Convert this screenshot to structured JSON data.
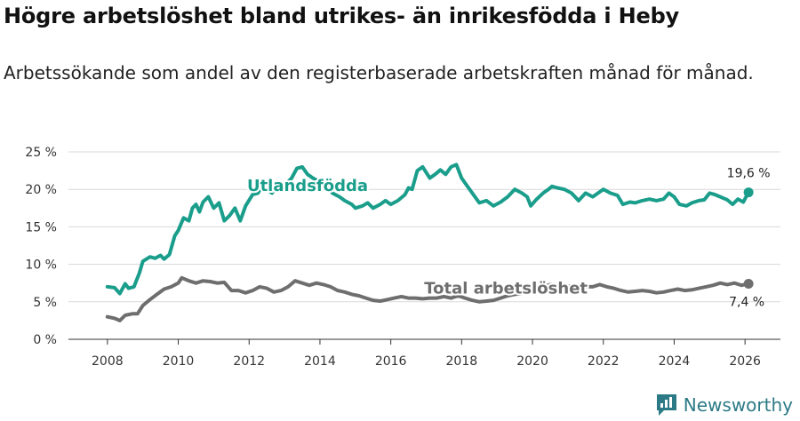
{
  "title": "Högre arbetslöshet bland utrikes- än inrikesfödda i Heby",
  "subtitle": "Arbetssökande som andel av den registerbaserade arbetskraften månad för månad.",
  "brand": "Newsworthy",
  "colors": {
    "foreign": "#1a9e8b",
    "total": "#6e6e6e"
  },
  "chart_data": {
    "type": "line",
    "title": "Högre arbetslöshet bland utrikes- än inrikesfödda i Heby",
    "xlabel": "",
    "ylabel": "",
    "xlim": [
      2006.9,
      2027.0
    ],
    "ylim": [
      0,
      25
    ],
    "x_ticks": [
      2008,
      2010,
      2012,
      2014,
      2016,
      2018,
      2020,
      2022,
      2024,
      2026
    ],
    "x_tick_labels": [
      "2008",
      "2010",
      "2012",
      "2014",
      "2016",
      "2018",
      "2020",
      "2022",
      "2024",
      "2026"
    ],
    "y_ticks": [
      0,
      5,
      10,
      15,
      20,
      25
    ],
    "y_tick_labels": [
      "0 %",
      "5 %",
      "10 %",
      "15 %",
      "20 %",
      "25 %"
    ],
    "grid": true,
    "series": [
      {
        "name": "Utlandsfödda",
        "end_label": "19,6 %",
        "points": [
          [
            2008.0,
            7.0
          ],
          [
            2008.2,
            6.9
          ],
          [
            2008.35,
            6.1
          ],
          [
            2008.5,
            7.4
          ],
          [
            2008.6,
            6.8
          ],
          [
            2008.75,
            7.0
          ],
          [
            2008.9,
            8.8
          ],
          [
            2009.0,
            10.4
          ],
          [
            2009.2,
            11.0
          ],
          [
            2009.35,
            10.8
          ],
          [
            2009.5,
            11.2
          ],
          [
            2009.6,
            10.7
          ],
          [
            2009.75,
            11.3
          ],
          [
            2009.9,
            13.8
          ],
          [
            2010.0,
            14.5
          ],
          [
            2010.15,
            16.2
          ],
          [
            2010.3,
            15.8
          ],
          [
            2010.4,
            17.5
          ],
          [
            2010.5,
            18.0
          ],
          [
            2010.6,
            17.0
          ],
          [
            2010.7,
            18.3
          ],
          [
            2010.85,
            19.0
          ],
          [
            2011.0,
            17.5
          ],
          [
            2011.15,
            18.2
          ],
          [
            2011.3,
            15.8
          ],
          [
            2011.45,
            16.5
          ],
          [
            2011.6,
            17.5
          ],
          [
            2011.75,
            15.8
          ],
          [
            2011.9,
            17.8
          ],
          [
            2012.1,
            19.3
          ],
          [
            2012.25,
            19.5
          ],
          [
            2012.35,
            20.3
          ],
          [
            2012.5,
            20.0
          ],
          [
            2012.65,
            19.5
          ],
          [
            2012.8,
            21.0
          ],
          [
            2013.0,
            20.5
          ],
          [
            2013.2,
            21.5
          ],
          [
            2013.35,
            22.8
          ],
          [
            2013.5,
            23.0
          ],
          [
            2013.65,
            22.0
          ],
          [
            2013.8,
            21.5
          ],
          [
            2014.0,
            21.0
          ],
          [
            2014.2,
            20.5
          ],
          [
            2014.35,
            19.5
          ],
          [
            2014.55,
            19.0
          ],
          [
            2014.7,
            18.5
          ],
          [
            2014.9,
            18.0
          ],
          [
            2015.0,
            17.5
          ],
          [
            2015.2,
            17.8
          ],
          [
            2015.35,
            18.2
          ],
          [
            2015.5,
            17.5
          ],
          [
            2015.7,
            18.0
          ],
          [
            2015.85,
            18.5
          ],
          [
            2016.0,
            18.0
          ],
          [
            2016.2,
            18.5
          ],
          [
            2016.4,
            19.3
          ],
          [
            2016.5,
            20.2
          ],
          [
            2016.6,
            20.0
          ],
          [
            2016.75,
            22.5
          ],
          [
            2016.9,
            23.0
          ],
          [
            2017.1,
            21.5
          ],
          [
            2017.25,
            22.0
          ],
          [
            2017.4,
            22.6
          ],
          [
            2017.55,
            22.0
          ],
          [
            2017.7,
            23.0
          ],
          [
            2017.85,
            23.3
          ],
          [
            2018.0,
            21.5
          ],
          [
            2018.15,
            20.5
          ],
          [
            2018.3,
            19.5
          ],
          [
            2018.5,
            18.2
          ],
          [
            2018.7,
            18.5
          ],
          [
            2018.9,
            17.8
          ],
          [
            2019.1,
            18.3
          ],
          [
            2019.3,
            19.0
          ],
          [
            2019.5,
            20.0
          ],
          [
            2019.7,
            19.5
          ],
          [
            2019.85,
            19.0
          ],
          [
            2019.95,
            17.8
          ],
          [
            2020.1,
            18.6
          ],
          [
            2020.3,
            19.5
          ],
          [
            2020.45,
            20.0
          ],
          [
            2020.55,
            20.4
          ],
          [
            2020.7,
            20.2
          ],
          [
            2020.9,
            20.0
          ],
          [
            2021.1,
            19.5
          ],
          [
            2021.3,
            18.5
          ],
          [
            2021.5,
            19.5
          ],
          [
            2021.7,
            19.0
          ],
          [
            2021.85,
            19.5
          ],
          [
            2022.0,
            20.0
          ],
          [
            2022.2,
            19.5
          ],
          [
            2022.4,
            19.2
          ],
          [
            2022.55,
            18.0
          ],
          [
            2022.75,
            18.3
          ],
          [
            2022.9,
            18.2
          ],
          [
            2023.1,
            18.5
          ],
          [
            2023.3,
            18.7
          ],
          [
            2023.5,
            18.5
          ],
          [
            2023.7,
            18.7
          ],
          [
            2023.85,
            19.5
          ],
          [
            2024.0,
            19.0
          ],
          [
            2024.15,
            18.0
          ],
          [
            2024.35,
            17.8
          ],
          [
            2024.5,
            18.2
          ],
          [
            2024.7,
            18.5
          ],
          [
            2024.85,
            18.6
          ],
          [
            2025.0,
            19.5
          ],
          [
            2025.15,
            19.3
          ],
          [
            2025.3,
            19.0
          ],
          [
            2025.5,
            18.6
          ],
          [
            2025.65,
            18.0
          ],
          [
            2025.8,
            18.7
          ],
          [
            2025.95,
            18.3
          ],
          [
            2026.1,
            19.6
          ]
        ]
      },
      {
        "name": "Total arbetslöshet",
        "end_label": "7,4 %",
        "points": [
          [
            2008.0,
            3.0
          ],
          [
            2008.2,
            2.8
          ],
          [
            2008.35,
            2.5
          ],
          [
            2008.5,
            3.2
          ],
          [
            2008.7,
            3.4
          ],
          [
            2008.85,
            3.4
          ],
          [
            2009.0,
            4.5
          ],
          [
            2009.2,
            5.3
          ],
          [
            2009.4,
            6.0
          ],
          [
            2009.6,
            6.7
          ],
          [
            2009.8,
            7.0
          ],
          [
            2010.0,
            7.5
          ],
          [
            2010.1,
            8.2
          ],
          [
            2010.3,
            7.8
          ],
          [
            2010.5,
            7.5
          ],
          [
            2010.7,
            7.8
          ],
          [
            2010.9,
            7.7
          ],
          [
            2011.1,
            7.5
          ],
          [
            2011.3,
            7.6
          ],
          [
            2011.5,
            6.5
          ],
          [
            2011.7,
            6.5
          ],
          [
            2011.9,
            6.2
          ],
          [
            2012.1,
            6.5
          ],
          [
            2012.3,
            7.0
          ],
          [
            2012.5,
            6.8
          ],
          [
            2012.7,
            6.3
          ],
          [
            2012.9,
            6.5
          ],
          [
            2013.1,
            7.0
          ],
          [
            2013.3,
            7.8
          ],
          [
            2013.5,
            7.5
          ],
          [
            2013.7,
            7.2
          ],
          [
            2013.9,
            7.5
          ],
          [
            2014.1,
            7.3
          ],
          [
            2014.3,
            7.0
          ],
          [
            2014.5,
            6.5
          ],
          [
            2014.7,
            6.3
          ],
          [
            2014.9,
            6.0
          ],
          [
            2015.1,
            5.8
          ],
          [
            2015.3,
            5.5
          ],
          [
            2015.5,
            5.2
          ],
          [
            2015.7,
            5.1
          ],
          [
            2015.9,
            5.3
          ],
          [
            2016.1,
            5.5
          ],
          [
            2016.3,
            5.7
          ],
          [
            2016.5,
            5.5
          ],
          [
            2016.7,
            5.5
          ],
          [
            2016.9,
            5.4
          ],
          [
            2017.1,
            5.5
          ],
          [
            2017.3,
            5.5
          ],
          [
            2017.5,
            5.7
          ],
          [
            2017.7,
            5.5
          ],
          [
            2017.9,
            5.8
          ],
          [
            2018.1,
            5.5
          ],
          [
            2018.3,
            5.2
          ],
          [
            2018.5,
            5.0
          ],
          [
            2018.7,
            5.1
          ],
          [
            2018.9,
            5.2
          ],
          [
            2019.1,
            5.5
          ],
          [
            2019.3,
            5.8
          ],
          [
            2019.5,
            6.0
          ],
          [
            2019.7,
            6.1
          ],
          [
            2019.9,
            6.3
          ],
          [
            2020.1,
            6.5
          ],
          [
            2020.3,
            7.0
          ],
          [
            2020.5,
            7.3
          ],
          [
            2020.7,
            7.2
          ],
          [
            2020.9,
            7.0
          ],
          [
            2021.1,
            7.1
          ],
          [
            2021.3,
            7.2
          ],
          [
            2021.5,
            7.0
          ],
          [
            2021.7,
            7.0
          ],
          [
            2021.9,
            7.3
          ],
          [
            2022.1,
            7.0
          ],
          [
            2022.3,
            6.8
          ],
          [
            2022.5,
            6.5
          ],
          [
            2022.7,
            6.3
          ],
          [
            2022.9,
            6.4
          ],
          [
            2023.1,
            6.5
          ],
          [
            2023.3,
            6.4
          ],
          [
            2023.5,
            6.2
          ],
          [
            2023.7,
            6.3
          ],
          [
            2023.9,
            6.5
          ],
          [
            2024.1,
            6.7
          ],
          [
            2024.3,
            6.5
          ],
          [
            2024.5,
            6.6
          ],
          [
            2024.7,
            6.8
          ],
          [
            2024.9,
            7.0
          ],
          [
            2025.1,
            7.2
          ],
          [
            2025.3,
            7.5
          ],
          [
            2025.5,
            7.3
          ],
          [
            2025.7,
            7.5
          ],
          [
            2025.9,
            7.2
          ],
          [
            2026.1,
            7.4
          ]
        ]
      }
    ],
    "annotations": [
      {
        "text": "Utlandsfödda",
        "series": "Utlandsfödda",
        "x": 2013.65,
        "y": 19.8
      },
      {
        "text": "Total arbetslöshet",
        "series": "Total arbetslöshet",
        "x": 2019.25,
        "y": 6.1
      }
    ]
  }
}
